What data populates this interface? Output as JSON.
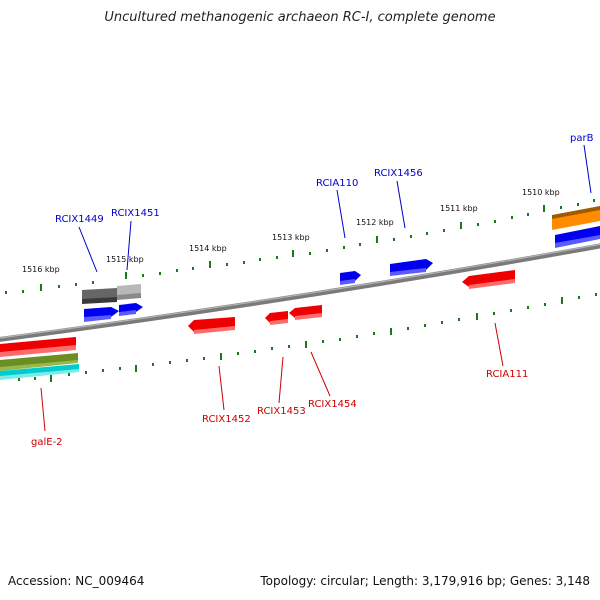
{
  "title": "Uncultured methanogenic archaeon RC-I, complete genome",
  "accession": "Accession: NC_009464",
  "topology": "Topology: circular; Length: 3,179,916 bp; Genes: 3,148",
  "colors": {
    "forward_label": "#0000cc",
    "reverse_label": "#cc0000",
    "tick": "#1a7a1a",
    "backbone": "#808080",
    "blue_gene": "#0000ee",
    "red_gene": "#ee0000",
    "orange_gene": "#ff8c00",
    "olive_gene": "#6b8e23",
    "cyan_gene": "#00cccc",
    "dark_grey_gene": "#666666",
    "light_grey_gene": "#b0b0b0"
  },
  "tick_labels": [
    {
      "id": "t1516",
      "text": "1516 kbp"
    },
    {
      "id": "t1515",
      "text": "1515 kbp"
    },
    {
      "id": "t1514",
      "text": "1514 kbp"
    },
    {
      "id": "t1513",
      "text": "1513 kbp"
    },
    {
      "id": "t1512",
      "text": "1512 kbp"
    },
    {
      "id": "t1511",
      "text": "1511 kbp"
    },
    {
      "id": "t1510",
      "text": "1510 kbp"
    }
  ],
  "gene_labels": [
    {
      "id": "RCIX1449",
      "text": "RCIX1449",
      "strand": "forward"
    },
    {
      "id": "RCIX1451",
      "text": "RCIX1451",
      "strand": "forward"
    },
    {
      "id": "RCIA110",
      "text": "RCIA110",
      "strand": "forward"
    },
    {
      "id": "RCIX1456",
      "text": "RCIX1456",
      "strand": "forward"
    },
    {
      "id": "parB",
      "text": "parB",
      "strand": "forward"
    },
    {
      "id": "RCIX1452",
      "text": "RCIX1452",
      "strand": "reverse"
    },
    {
      "id": "RCIX1453",
      "text": "RCIX1453",
      "strand": "reverse"
    },
    {
      "id": "RCIX1454",
      "text": "RCIX1454",
      "strand": "reverse"
    },
    {
      "id": "RCIA111",
      "text": "RCIA111",
      "strand": "reverse"
    },
    {
      "id": "galE-2",
      "text": "galE-2",
      "strand": "reverse"
    }
  ]
}
